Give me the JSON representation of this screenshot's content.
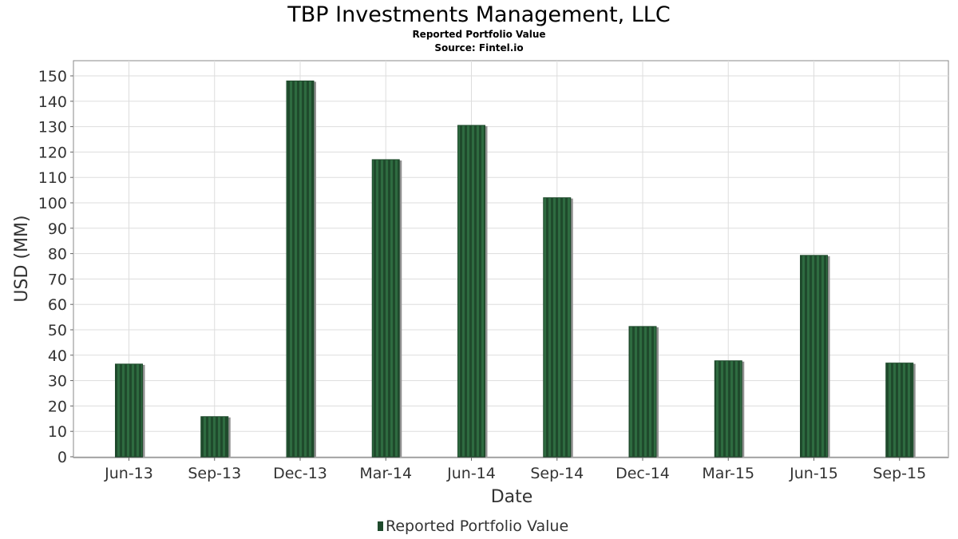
{
  "chart_data": {
    "type": "bar",
    "title": "TBP Investments Management, LLC",
    "subtitle_lines": [
      "Reported Portfolio Value",
      "Source: Fintel.io"
    ],
    "xlabel": "Date",
    "ylabel": "USD (MM)",
    "categories": [
      "Jun-13",
      "Sep-13",
      "Dec-13",
      "Mar-14",
      "Jun-14",
      "Sep-14",
      "Dec-14",
      "Mar-15",
      "Jun-15",
      "Sep-15"
    ],
    "series": [
      {
        "name": "Reported Portfolio Value",
        "values": [
          36.5,
          15.8,
          148,
          117,
          130.5,
          102,
          51.3,
          37.8,
          79.3,
          36.9
        ]
      }
    ],
    "ylim": [
      0,
      155
    ],
    "yticks": [
      0,
      10,
      20,
      30,
      40,
      50,
      60,
      70,
      80,
      90,
      100,
      110,
      120,
      130,
      140,
      150
    ],
    "grid": true,
    "legend_position": "bottom-center",
    "colors": {
      "bar": "#1f4a2c",
      "bar_stripe": "#2e6b40",
      "bar_shadow": "#909090",
      "grid": "#dddddd",
      "axis": "#666666"
    }
  }
}
